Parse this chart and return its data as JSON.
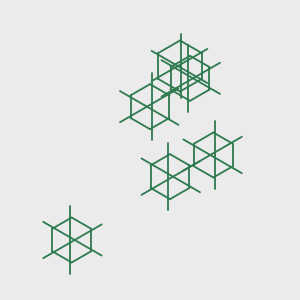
{
  "bg_color": "#ebebeb",
  "bond_color": "#2d7a4f",
  "o_color": "#ff0000",
  "f_color": "#cc00cc",
  "font_size": 7.5,
  "lw": 1.3
}
